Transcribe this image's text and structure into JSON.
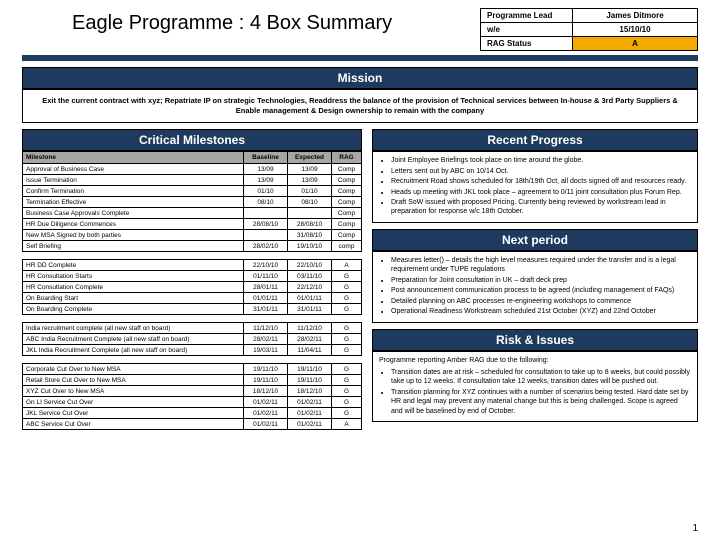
{
  "title": "Eagle Programme : 4 Box Summary",
  "meta": {
    "lead_label": "Programme Lead",
    "lead": "James Ditmore",
    "we_label": "w/e",
    "we": "15/10/10",
    "rag_label": "RAG Status",
    "rag": "A"
  },
  "sections": {
    "mission": "Mission",
    "milestones": "Critical Milestones",
    "progress": "Recent Progress",
    "next": "Next period",
    "risk": "Risk & Issues"
  },
  "mission_text": "Exit the current contract with xyz; Repatriate IP on strategic Technologies, Readdress the balance of the provision of Technical services between In-house & 3rd Party Suppliers & Enable management & Design ownership to remain with the company",
  "ms_headers": [
    "Milestone",
    "Baseline",
    "Expected",
    "RAG"
  ],
  "milestones": [
    {
      "m": "Approval of Business Case",
      "b": "13/09",
      "e": "13/09",
      "r": "Comp",
      "rc": "rag-Comp"
    },
    {
      "m": "Issue Termination",
      "b": "13/09",
      "e": "13/09",
      "r": "Comp",
      "rc": "rag-Comp"
    },
    {
      "m": "Confirm Termination",
      "b": "01/10",
      "e": "01/10",
      "r": "Comp",
      "rc": "rag-Comp"
    },
    {
      "m": "Termination Effective",
      "b": "08/10",
      "e": "08/10",
      "r": "Comp",
      "rc": "rag-Comp"
    },
    {
      "m": "Business Case Approvals Complete",
      "b": "",
      "e": "",
      "r": "Comp",
      "rc": "rag-Comp"
    },
    {
      "m": "HR Due Diligence Commences",
      "b": "28/08/10",
      "e": "28/08/10",
      "r": "Comp",
      "rc": "rag-Comp"
    },
    {
      "m": "New MSA Signed by both parties",
      "b": "",
      "e": "31/08/10",
      "r": "Comp",
      "rc": "rag-Comp"
    },
    {
      "m": "Self Briefing",
      "b": "28/02/10",
      "e": "19/10/10",
      "r": "comp",
      "rc": "rag-comp"
    },
    {
      "spacer": true
    },
    {
      "m": "HR DD Complete",
      "b": "22/10/10",
      "e": "22/10/10",
      "r": "A",
      "rc": "rag-A2"
    },
    {
      "m": "HR Consultation Starts",
      "b": "01/11/10",
      "e": "03/11/10",
      "r": "G",
      "rc": "rag-G"
    },
    {
      "m": "HR Consultation Complete",
      "b": "28/01/11",
      "e": "22/12/10",
      "r": "G",
      "rc": "rag-G"
    },
    {
      "m": "On Boarding Start",
      "b": "01/01/11",
      "e": "01/01/11",
      "r": "G",
      "rc": "rag-G"
    },
    {
      "m": "On Boarding Complete",
      "b": "31/01/11",
      "e": "31/01/11",
      "r": "G",
      "rc": "rag-G"
    },
    {
      "spacer": true
    },
    {
      "m": "India recruitment complete (all new staff on board)",
      "b": "11/12/10",
      "e": "11/12/10",
      "r": "G",
      "rc": "rag-G"
    },
    {
      "m": "ABC India Recruitment Complete (all new staff on board)",
      "b": "28/02/11",
      "e": "28/02/11",
      "r": "G",
      "rc": "rag-G"
    },
    {
      "m": "JKL India Recruitment Complete (all new staff on board)",
      "b": "19/03/11",
      "e": "11/04/11",
      "r": "G",
      "rc": "rag-G"
    },
    {
      "spacer": true
    },
    {
      "m": "Corporate Cut Over to New MSA",
      "b": "19/11/10",
      "e": "19/11/10",
      "r": "G",
      "rc": "rag-G"
    },
    {
      "m": "Retail Store Cut Over to New MSA",
      "b": "19/11/10",
      "e": "19/11/10",
      "r": "G",
      "rc": "rag-G"
    },
    {
      "m": "XYZ Cut Over to New MSA",
      "b": "18/12/10",
      "e": "18/12/10",
      "r": "G",
      "rc": "rag-G"
    },
    {
      "m": "Gn LI Service Cut Over",
      "b": "01/02/11",
      "e": "01/02/11",
      "r": "G",
      "rc": "rag-G"
    },
    {
      "m": "JKL Service Cut Over",
      "b": "01/02/11",
      "e": "01/02/11",
      "r": "G",
      "rc": "rag-G"
    },
    {
      "m": "ABC Service Cut Over",
      "b": "01/02/11",
      "e": "01/02/11",
      "r": "A",
      "rc": "rag-A2"
    }
  ],
  "progress": [
    "Joint Employee Briefings took place on time around the globe.",
    "Letters sent out by ABC on 10/14 Oct.",
    "Recruitment Road shows scheduled for 18th/19th Oct, all docts signed off and resources ready.",
    "Heads up meeting with JKL took place – agreement to 0/11 joint consultation plus Forum Rep.",
    "Draft SoW issued with proposed Pricing. Currently being reviewed by workstream lead in preparation for response w/c 18th October."
  ],
  "next": [
    "Measures letter() – details the high level measures required under the transfer and is a legal requirement under TUPE regulations",
    "Preparation for Joint consultation in UK – draft deck prep",
    "Post announcement communication process to be agreed (including management of FAQs)",
    "Detailed planning on ABC processes re-engineering workshops to commence",
    "Operational Readiness Workstream scheduled 21st October (XYZ) and 22nd October"
  ],
  "risk_intro": "Programme reporting Amber RAG due to the following:",
  "risk": [
    "Transition dates are at risk – scheduled for consultation to take up to 8 weeks, but could possibly take up to 12 weeks. If consultation take 12 weeks, transition dates will be pushed out.",
    "Transition planning for XYZ continues with a number of scenarios being tested. Hard date set by HR and legal may prevent any material change but this is being challenged. Scope is agreed and will be baselined by end of October."
  ],
  "page": "1"
}
